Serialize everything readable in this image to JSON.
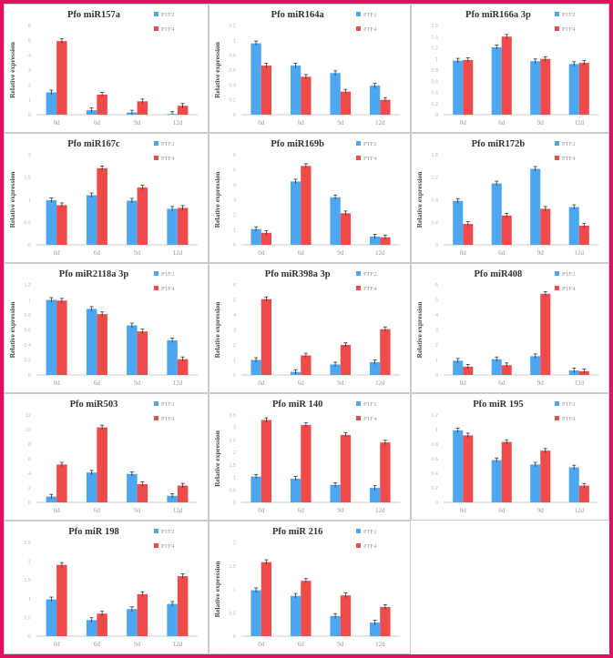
{
  "colors": {
    "frame": "#e0115f",
    "ptf2": "#4da6f0",
    "ptf4": "#f04b4b",
    "grid_border": "#cccccc"
  },
  "chart_data": [
    {
      "type": "bar",
      "title": "Pfo miR157a",
      "ylabel": "Relative expression",
      "categories": [
        "0d",
        "6d",
        "9d",
        "12d"
      ],
      "ylim": [
        0,
        6
      ],
      "yticks": [
        "0",
        "1",
        "2",
        "3",
        "4",
        "5",
        "6"
      ],
      "series": [
        {
          "name": "PTF2",
          "values": [
            1.5,
            0.3,
            0.15,
            0.05
          ]
        },
        {
          "name": "PTF4",
          "values": [
            4.95,
            1.35,
            0.9,
            0.6
          ]
        }
      ],
      "legend": "top-right"
    },
    {
      "type": "bar",
      "title": "Pfo miR164a",
      "ylabel": "Relative expression",
      "categories": [
        "0d",
        "6d",
        "9d",
        "12d"
      ],
      "ylim": [
        0,
        1.2
      ],
      "yticks": [
        "0",
        "0.2",
        "0.4",
        "0.6",
        "0.8",
        "1",
        "1.2"
      ],
      "series": [
        {
          "name": "PTF2",
          "values": [
            0.96,
            0.66,
            0.56,
            0.39
          ]
        },
        {
          "name": "PTF4",
          "values": [
            0.66,
            0.51,
            0.31,
            0.2
          ]
        }
      ],
      "legend": "top-right"
    },
    {
      "type": "bar",
      "title": "Pfo miR166a 3p",
      "ylabel": "",
      "categories": [
        "0d",
        "6d",
        "9d",
        "12d"
      ],
      "ylim": [
        0,
        1.6
      ],
      "yticks": [
        "0",
        "0.2",
        "0.4",
        "0.6",
        "0.8",
        "1",
        "1.2",
        "1.4",
        "1.6"
      ],
      "series": [
        {
          "name": "PTF2",
          "values": [
            0.97,
            1.21,
            0.96,
            0.91
          ]
        },
        {
          "name": "PTF4",
          "values": [
            0.98,
            1.4,
            1.0,
            0.93
          ]
        }
      ],
      "legend": "top-right"
    },
    {
      "type": "bar",
      "title": "Pfo miR167c",
      "ylabel": "Relative expression",
      "categories": [
        "0d",
        "6d",
        "9d",
        "12d"
      ],
      "ylim": [
        0,
        2
      ],
      "yticks": [
        "0",
        "0.5",
        "1",
        "1.5",
        "2"
      ],
      "series": [
        {
          "name": "PTF2",
          "values": [
            0.99,
            1.1,
            0.98,
            0.8
          ]
        },
        {
          "name": "PTF4",
          "values": [
            0.88,
            1.7,
            1.27,
            0.82
          ]
        }
      ],
      "legend": "top-right"
    },
    {
      "type": "bar",
      "title": "Pfo miR169b",
      "ylabel": "Relative expression",
      "categories": [
        "0d",
        "6d",
        "9d",
        "12d"
      ],
      "ylim": [
        0,
        6
      ],
      "yticks": [
        "0",
        "1",
        "2",
        "3",
        "4",
        "5",
        "6"
      ],
      "series": [
        {
          "name": "PTF2",
          "values": [
            1.05,
            4.22,
            3.17,
            0.55
          ]
        },
        {
          "name": "PTF4",
          "values": [
            0.8,
            5.25,
            2.1,
            0.5
          ]
        }
      ],
      "legend": "top-right"
    },
    {
      "type": "bar",
      "title": "Pfo miR172b",
      "ylabel": "Relative expression",
      "categories": [
        "0d",
        "6d",
        "9d",
        "12d"
      ],
      "ylim": [
        0,
        1.6
      ],
      "yticks": [
        "0",
        "0.4",
        "0.8",
        "1.2",
        "1.6"
      ],
      "series": [
        {
          "name": "PTF2",
          "values": [
            0.78,
            1.09,
            1.35,
            0.67
          ]
        },
        {
          "name": "PTF4",
          "values": [
            0.37,
            0.52,
            0.64,
            0.34
          ]
        }
      ],
      "legend": "top-right"
    },
    {
      "type": "bar",
      "title": "Pfo miR2118a 3p",
      "ylabel": "Relative expression",
      "categories": [
        "0d",
        "6d",
        "9d",
        "12d"
      ],
      "ylim": [
        0,
        1.2
      ],
      "yticks": [
        "0",
        "0.2",
        "0.4",
        "0.6",
        "0.8",
        "1",
        "1.2"
      ],
      "series": [
        {
          "name": "PTF2",
          "values": [
            1.0,
            0.88,
            0.66,
            0.46
          ]
        },
        {
          "name": "PTF4",
          "values": [
            0.99,
            0.81,
            0.58,
            0.21
          ]
        }
      ],
      "legend": "top-right"
    },
    {
      "type": "bar",
      "title": "Pfo miR398a 3p",
      "ylabel": "Relative expression",
      "categories": [
        "0d",
        "6d",
        "9d",
        "12d"
      ],
      "ylim": [
        0,
        6
      ],
      "yticks": [
        "0",
        "1",
        "2",
        "3",
        "4",
        "5",
        "6"
      ],
      "series": [
        {
          "name": "PTF2",
          "values": [
            1.0,
            0.2,
            0.7,
            0.85
          ]
        },
        {
          "name": "PTF4",
          "values": [
            5.05,
            1.3,
            2.0,
            3.05
          ]
        }
      ],
      "legend": "top-right"
    },
    {
      "type": "bar",
      "title": "Pfo miR408",
      "ylabel": "Relative expression",
      "categories": [
        "0d",
        "6d",
        "9d",
        "12d"
      ],
      "ylim": [
        0,
        6
      ],
      "yticks": [
        "0",
        "1",
        "2",
        "3",
        "4",
        "5",
        "6"
      ],
      "series": [
        {
          "name": "PTF2",
          "values": [
            0.95,
            1.05,
            1.25,
            0.3
          ]
        },
        {
          "name": "PTF4",
          "values": [
            0.55,
            0.65,
            5.4,
            0.25
          ]
        }
      ],
      "legend": "top-right"
    },
    {
      "type": "bar",
      "title": "Pfo miR503",
      "ylabel": "",
      "categories": [
        "0d",
        "6d",
        "9d",
        "12d"
      ],
      "ylim": [
        0,
        12
      ],
      "yticks": [
        "0",
        "2",
        "4",
        "6",
        "8",
        "10",
        "12"
      ],
      "series": [
        {
          "name": "PTF2",
          "values": [
            0.8,
            4.1,
            3.9,
            0.9
          ]
        },
        {
          "name": "PTF4",
          "values": [
            5.2,
            10.3,
            2.5,
            2.3
          ]
        }
      ],
      "legend": "top-right"
    },
    {
      "type": "bar",
      "title": "Pfo miR 140",
      "ylabel": "Relative expression",
      "categories": [
        "0d",
        "6d",
        "9d",
        "12d"
      ],
      "ylim": [
        0,
        3.5
      ],
      "yticks": [
        "0",
        "0.5",
        "1",
        "1.5",
        "2",
        "2.5",
        "3",
        "3.5"
      ],
      "series": [
        {
          "name": "PTF2",
          "values": [
            1.03,
            0.95,
            0.7,
            0.58
          ]
        },
        {
          "name": "PTF4",
          "values": [
            3.3,
            3.1,
            2.7,
            2.4
          ]
        }
      ],
      "legend": "top-right"
    },
    {
      "type": "bar",
      "title": "Pfo miR 195",
      "ylabel": "",
      "categories": [
        "0d",
        "6d",
        "9d",
        "12d"
      ],
      "ylim": [
        0,
        1.2
      ],
      "yticks": [
        "0",
        "0.2",
        "0.4",
        "0.6",
        "0.8",
        "1",
        "1.2"
      ],
      "series": [
        {
          "name": "PTF2",
          "values": [
            0.99,
            0.58,
            0.52,
            0.48
          ]
        },
        {
          "name": "PTF4",
          "values": [
            0.92,
            0.83,
            0.71,
            0.23
          ]
        }
      ],
      "legend": "top-right"
    },
    {
      "type": "bar",
      "title": "Pfo miR 198",
      "ylabel": "",
      "categories": [
        "0d",
        "6d",
        "9d",
        "12d"
      ],
      "ylim": [
        0,
        2.5
      ],
      "yticks": [
        "0",
        "0.5",
        "1",
        "1.5",
        "2",
        "2.5"
      ],
      "series": [
        {
          "name": "PTF2",
          "values": [
            0.98,
            0.43,
            0.72,
            0.86
          ]
        },
        {
          "name": "PTF4",
          "values": [
            1.9,
            0.6,
            1.12,
            1.6
          ]
        }
      ],
      "legend": "top-right"
    },
    {
      "type": "bar",
      "title": "Pfo miR 216",
      "ylabel": "Relative expression",
      "categories": [
        "0d",
        "6d",
        "9d",
        "12d"
      ],
      "ylim": [
        0,
        2
      ],
      "yticks": [
        "0",
        "0.5",
        "1",
        "1.5",
        "2"
      ],
      "series": [
        {
          "name": "PTF2",
          "values": [
            0.98,
            0.86,
            0.43,
            0.29
          ]
        },
        {
          "name": "PTF4",
          "values": [
            1.58,
            1.18,
            0.87,
            0.62
          ]
        }
      ],
      "legend": "top-right"
    }
  ]
}
